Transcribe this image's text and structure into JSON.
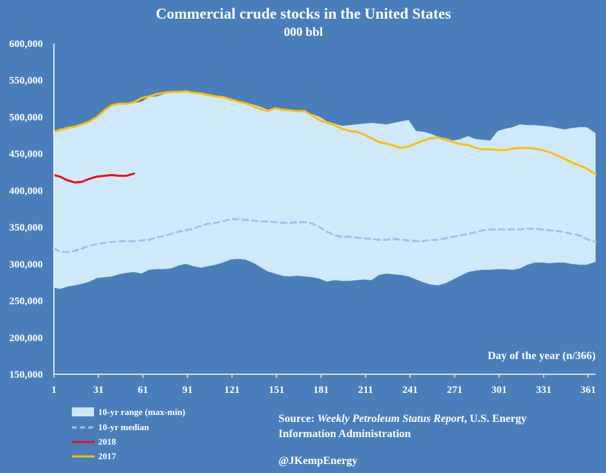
{
  "chart_data": {
    "type": "line",
    "title": "Commercial crude stocks in the United States",
    "subtitle": "000 bbl",
    "xlabel": "Day of the year (n/366)",
    "ylabel": "",
    "xlim": [
      1,
      366
    ],
    "ylim": [
      150000,
      600000
    ],
    "x_ticks": [
      1,
      31,
      61,
      91,
      121,
      151,
      181,
      211,
      241,
      271,
      301,
      331,
      361
    ],
    "y_ticks": [
      150000,
      200000,
      250000,
      300000,
      350000,
      400000,
      450000,
      500000,
      550000,
      600000
    ],
    "y_tick_labels": [
      "150,000",
      "200,000",
      "250,000",
      "300,000",
      "350,000",
      "400,000",
      "450,000",
      "500,000",
      "550,000",
      "600,000"
    ],
    "range": {
      "name": "10-yr range (max-min)",
      "color": "#cfe9fb",
      "x": [
        1,
        5,
        10,
        15,
        20,
        25,
        30,
        35,
        40,
        45,
        50,
        55,
        60,
        65,
        70,
        75,
        80,
        85,
        90,
        95,
        100,
        105,
        110,
        115,
        120,
        125,
        130,
        135,
        140,
        145,
        150,
        155,
        160,
        165,
        170,
        175,
        180,
        185,
        190,
        195,
        200,
        205,
        210,
        215,
        220,
        225,
        230,
        235,
        240,
        245,
        250,
        255,
        260,
        265,
        270,
        275,
        280,
        285,
        290,
        295,
        300,
        305,
        310,
        315,
        320,
        325,
        330,
        335,
        340,
        345,
        350,
        355,
        360,
        366
      ],
      "max": [
        481000,
        484000,
        486000,
        488000,
        490000,
        494000,
        500000,
        510000,
        516000,
        518000,
        518000,
        519000,
        521000,
        527000,
        528000,
        531000,
        534000,
        534000,
        535000,
        533000,
        532000,
        531000,
        528000,
        527000,
        524000,
        521000,
        520000,
        517000,
        514000,
        510000,
        512000,
        511000,
        510000,
        508000,
        508000,
        504000,
        500000,
        494000,
        491000,
        488000,
        489000,
        490000,
        491000,
        492000,
        491000,
        490000,
        492000,
        494000,
        496000,
        481000,
        480000,
        477000,
        473000,
        471000,
        468000,
        470000,
        474000,
        470000,
        469000,
        468000,
        481000,
        484000,
        486000,
        490000,
        489000,
        489000,
        488000,
        487000,
        485000,
        483000,
        485000,
        486000,
        486000,
        478000
      ],
      "min": [
        268000,
        266000,
        269000,
        271000,
        273000,
        276000,
        281000,
        282000,
        283000,
        286000,
        288000,
        289000,
        287000,
        292000,
        293000,
        293000,
        294000,
        298000,
        300000,
        297000,
        295000,
        297000,
        299000,
        302000,
        306000,
        307000,
        306000,
        302000,
        296000,
        290000,
        287000,
        284000,
        283000,
        284000,
        283000,
        282000,
        280000,
        276000,
        278000,
        277000,
        277000,
        278000,
        279000,
        278000,
        285000,
        287000,
        286000,
        285000,
        283000,
        279000,
        275000,
        272000,
        271000,
        274000,
        279000,
        284000,
        289000,
        291000,
        292000,
        292000,
        293000,
        293000,
        292000,
        294000,
        299000,
        302000,
        302000,
        301000,
        302000,
        302000,
        300000,
        299000,
        299000,
        303000
      ]
    },
    "series": [
      {
        "name": "10-yr median",
        "color": "#9dc3e6",
        "style": "dashed",
        "x": [
          1,
          5,
          10,
          15,
          20,
          25,
          30,
          35,
          40,
          45,
          50,
          55,
          60,
          65,
          70,
          75,
          80,
          85,
          90,
          95,
          100,
          105,
          110,
          115,
          120,
          125,
          130,
          135,
          140,
          145,
          150,
          155,
          160,
          165,
          170,
          175,
          180,
          185,
          190,
          195,
          200,
          205,
          210,
          215,
          220,
          225,
          230,
          235,
          240,
          245,
          250,
          255,
          260,
          265,
          270,
          275,
          280,
          285,
          290,
          295,
          300,
          305,
          310,
          315,
          320,
          325,
          330,
          335,
          340,
          345,
          350,
          355,
          360,
          366
        ],
        "values": [
          321000,
          317000,
          316000,
          318000,
          321000,
          325000,
          327000,
          329000,
          330000,
          331000,
          331000,
          331000,
          332000,
          333000,
          336000,
          338000,
          341000,
          344000,
          346000,
          348000,
          352000,
          355000,
          356000,
          358000,
          361000,
          361000,
          360000,
          359000,
          358000,
          358000,
          357000,
          356000,
          356000,
          357000,
          357000,
          355000,
          350000,
          344000,
          339000,
          337000,
          337000,
          336000,
          335000,
          334000,
          333000,
          333000,
          334000,
          333000,
          332000,
          331000,
          331000,
          333000,
          333000,
          335000,
          337000,
          339000,
          341000,
          343000,
          346000,
          347000,
          347000,
          347000,
          347000,
          347000,
          348000,
          348000,
          347000,
          346000,
          345000,
          343000,
          341000,
          339000,
          334000,
          330000
        ]
      },
      {
        "name": "2018",
        "color": "#e8101a",
        "style": "solid",
        "x": [
          1,
          5,
          10,
          15,
          20,
          25,
          30,
          35,
          40,
          45,
          50,
          55
        ],
        "values": [
          421000,
          419000,
          414000,
          411000,
          412000,
          416000,
          419000,
          420000,
          421000,
          420000,
          420000,
          423000
        ]
      },
      {
        "name": "2017",
        "color": "#ffc000",
        "style": "solid",
        "x": [
          1,
          5,
          10,
          15,
          20,
          25,
          30,
          35,
          40,
          45,
          50,
          55,
          60,
          65,
          70,
          75,
          80,
          85,
          90,
          95,
          100,
          105,
          110,
          115,
          120,
          125,
          130,
          135,
          140,
          145,
          150,
          155,
          160,
          165,
          170,
          175,
          180,
          185,
          190,
          195,
          200,
          205,
          210,
          215,
          220,
          225,
          230,
          235,
          240,
          245,
          250,
          255,
          260,
          265,
          270,
          275,
          280,
          285,
          290,
          295,
          300,
          305,
          310,
          315,
          320,
          325,
          330,
          335,
          340,
          345,
          350,
          355,
          360,
          366
        ],
        "values": [
          480000,
          482000,
          485000,
          487000,
          490000,
          494000,
          500000,
          509000,
          516000,
          518000,
          518000,
          520000,
          526000,
          528000,
          531000,
          533000,
          534000,
          534000,
          535000,
          533000,
          532000,
          530000,
          528000,
          527000,
          524000,
          521000,
          519000,
          515000,
          511000,
          508000,
          512000,
          510000,
          509000,
          508000,
          508000,
          502000,
          496000,
          492000,
          489000,
          484000,
          481000,
          480000,
          476000,
          471000,
          466000,
          464000,
          461000,
          458000,
          460000,
          464000,
          468000,
          471000,
          472000,
          469000,
          466000,
          463000,
          462000,
          458000,
          456000,
          456000,
          455000,
          455000,
          457000,
          458000,
          458000,
          457000,
          455000,
          452000,
          448000,
          443000,
          438000,
          434000,
          430000,
          422000
        ]
      }
    ],
    "annotations": {
      "source_prefix": "Source: ",
      "source_title": "Weekly Petroleum Status Report",
      "source_rest": ", U.S. Energy",
      "source_line2": "Information Administration",
      "handle": "@JKempEnergy"
    }
  }
}
